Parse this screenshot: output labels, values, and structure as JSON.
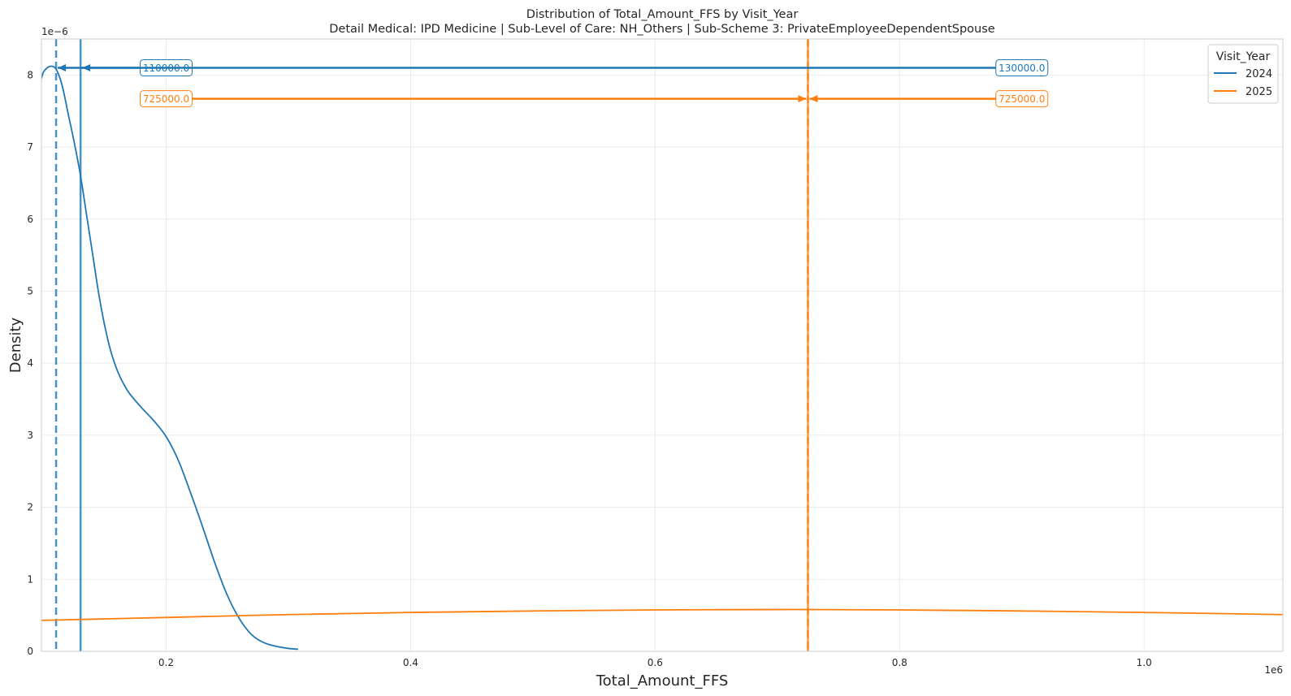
{
  "chart_data": {
    "type": "line",
    "title": "Distribution of Total_Amount_FFS by Visit_Year",
    "subtitle": "Detail Medical: IPD Medicine | Sub-Level of Care: NH_Others | Sub-Scheme 3: PrivateEmployeeDependentSpouse",
    "xlabel": "Total_Amount_FFS",
    "ylabel": "Density",
    "x_exponent_label": "1e6",
    "y_exponent_label": "1e−6",
    "xlim": [
      0.098,
      1.1135
    ],
    "ylim": [
      0,
      8.5
    ],
    "x_ticks": [
      0.2,
      0.4,
      0.6,
      0.8,
      1.0
    ],
    "x_tick_labels": [
      "0.2",
      "0.4",
      "0.6",
      "0.8",
      "1.0"
    ],
    "y_ticks": [
      0,
      1,
      2,
      3,
      4,
      5,
      6,
      7,
      8
    ],
    "y_tick_labels": [
      "0",
      "1",
      "2",
      "3",
      "4",
      "5",
      "6",
      "7",
      "8"
    ],
    "grid": true,
    "legend": {
      "title": "Visit_Year",
      "placement": "upper right"
    },
    "series": [
      {
        "name": "2024",
        "color": "#1f77b4",
        "x": [
          0.098,
          0.1,
          0.105,
          0.11,
          0.115,
          0.12,
          0.125,
          0.13,
          0.135,
          0.14,
          0.145,
          0.15,
          0.155,
          0.16,
          0.165,
          0.17,
          0.18,
          0.19,
          0.2,
          0.21,
          0.22,
          0.23,
          0.24,
          0.25,
          0.26,
          0.27,
          0.28,
          0.29,
          0.3,
          0.308
        ],
        "y": [
          7.95,
          8.05,
          8.12,
          8.08,
          7.85,
          7.45,
          7.05,
          6.6,
          6.05,
          5.5,
          4.95,
          4.5,
          4.15,
          3.9,
          3.72,
          3.58,
          3.38,
          3.2,
          2.98,
          2.65,
          2.2,
          1.72,
          1.22,
          0.78,
          0.45,
          0.23,
          0.12,
          0.07,
          0.04,
          0.03
        ]
      },
      {
        "name": "2025",
        "color": "#ff7f0e",
        "x": [
          0.098,
          0.2,
          0.3,
          0.4,
          0.5,
          0.6,
          0.7,
          0.725,
          0.8,
          0.9,
          1.0,
          1.1135
        ],
        "y": [
          0.43,
          0.47,
          0.51,
          0.54,
          0.56,
          0.575,
          0.58,
          0.58,
          0.575,
          0.56,
          0.54,
          0.51
        ]
      }
    ],
    "vertical_lines": [
      {
        "series": "2024",
        "stat": "median",
        "x": 0.11,
        "style": "dashed",
        "color": "#1f77b4"
      },
      {
        "series": "2024",
        "stat": "mean",
        "x": 0.13,
        "style": "solid",
        "color": "#1f77b4"
      },
      {
        "series": "2025",
        "stat": "median",
        "x": 0.725,
        "style": "dashed",
        "color": "#ff7f0e"
      },
      {
        "series": "2025",
        "stat": "mean",
        "x": 0.725,
        "style": "solid",
        "color": "#ff7f0e"
      }
    ],
    "annotations": [
      {
        "text": "110000.0",
        "color": "#1f77b4",
        "text_x": 0.2,
        "y": 8.1,
        "arrow_to_x": 0.11
      },
      {
        "text": "130000.0",
        "color": "#1f77b4",
        "text_x": 0.9,
        "y": 8.1,
        "arrow_to_x": 0.13
      },
      {
        "text": "725000.0",
        "color": "#ff7f0e",
        "text_x": 0.2,
        "y": 7.67,
        "arrow_to_x": 0.725
      },
      {
        "text": "725000.0",
        "color": "#ff7f0e",
        "text_x": 0.9,
        "y": 7.67,
        "arrow_to_x": 0.725
      }
    ]
  }
}
